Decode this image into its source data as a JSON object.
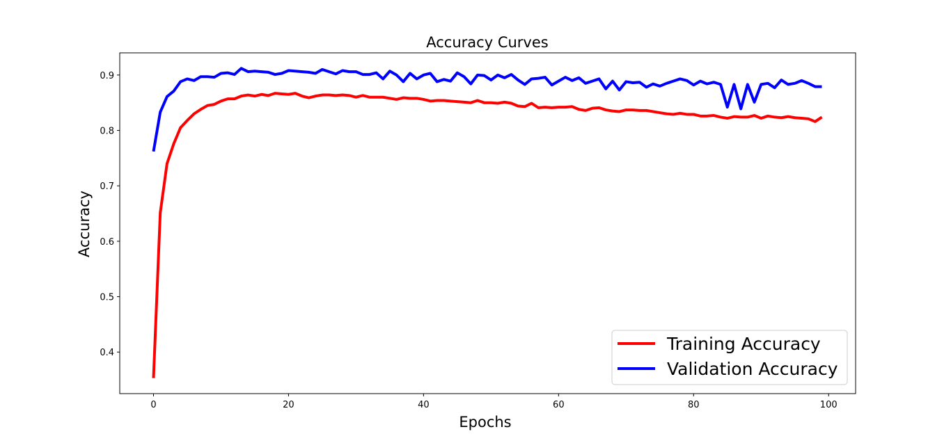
{
  "chart_data": {
    "type": "line",
    "title": "Accuracy Curves",
    "xlabel": "Epochs",
    "ylabel": "Accuracy",
    "xlim": [
      -5,
      104
    ],
    "ylim": [
      0.325,
      0.94
    ],
    "x_ticks": [
      0,
      20,
      40,
      60,
      80,
      100
    ],
    "y_ticks": [
      0.4,
      0.5,
      0.6,
      0.7,
      0.8,
      0.9
    ],
    "grid": false,
    "legend_position": "lower-right",
    "series": [
      {
        "name": "Training Accuracy",
        "color": "#ff0000",
        "x_start": 0,
        "x_step": 1,
        "values": [
          0.353,
          0.651,
          0.74,
          0.776,
          0.805,
          0.818,
          0.83,
          0.838,
          0.845,
          0.847,
          0.853,
          0.857,
          0.857,
          0.862,
          0.864,
          0.862,
          0.865,
          0.863,
          0.867,
          0.866,
          0.865,
          0.867,
          0.862,
          0.859,
          0.862,
          0.864,
          0.864,
          0.863,
          0.864,
          0.863,
          0.86,
          0.863,
          0.86,
          0.86,
          0.86,
          0.858,
          0.856,
          0.859,
          0.858,
          0.858,
          0.856,
          0.853,
          0.854,
          0.854,
          0.853,
          0.852,
          0.851,
          0.85,
          0.854,
          0.85,
          0.85,
          0.849,
          0.851,
          0.849,
          0.844,
          0.843,
          0.849,
          0.841,
          0.842,
          0.841,
          0.842,
          0.842,
          0.843,
          0.838,
          0.836,
          0.84,
          0.841,
          0.837,
          0.835,
          0.834,
          0.837,
          0.837,
          0.836,
          0.836,
          0.834,
          0.832,
          0.83,
          0.829,
          0.831,
          0.829,
          0.829,
          0.826,
          0.826,
          0.827,
          0.824,
          0.822,
          0.825,
          0.824,
          0.824,
          0.827,
          0.822,
          0.826,
          0.824,
          0.823,
          0.825,
          0.823,
          0.822,
          0.821,
          0.816,
          0.824
        ]
      },
      {
        "name": "Validation Accuracy",
        "color": "#0000ff",
        "x_start": 0,
        "x_step": 1,
        "values": [
          0.762,
          0.833,
          0.861,
          0.871,
          0.888,
          0.893,
          0.89,
          0.897,
          0.897,
          0.896,
          0.903,
          0.904,
          0.901,
          0.912,
          0.906,
          0.907,
          0.906,
          0.905,
          0.901,
          0.903,
          0.908,
          0.907,
          0.906,
          0.905,
          0.903,
          0.91,
          0.906,
          0.902,
          0.908,
          0.906,
          0.906,
          0.901,
          0.901,
          0.904,
          0.893,
          0.907,
          0.9,
          0.888,
          0.903,
          0.893,
          0.9,
          0.903,
          0.888,
          0.892,
          0.889,
          0.904,
          0.897,
          0.884,
          0.9,
          0.899,
          0.891,
          0.9,
          0.895,
          0.901,
          0.891,
          0.883,
          0.893,
          0.894,
          0.896,
          0.882,
          0.889,
          0.896,
          0.89,
          0.895,
          0.885,
          0.889,
          0.893,
          0.875,
          0.889,
          0.873,
          0.888,
          0.886,
          0.887,
          0.878,
          0.884,
          0.88,
          0.885,
          0.889,
          0.893,
          0.89,
          0.882,
          0.889,
          0.884,
          0.887,
          0.883,
          0.842,
          0.883,
          0.839,
          0.883,
          0.851,
          0.883,
          0.885,
          0.877,
          0.891,
          0.883,
          0.885,
          0.89,
          0.885,
          0.879,
          0.879
        ]
      }
    ]
  }
}
